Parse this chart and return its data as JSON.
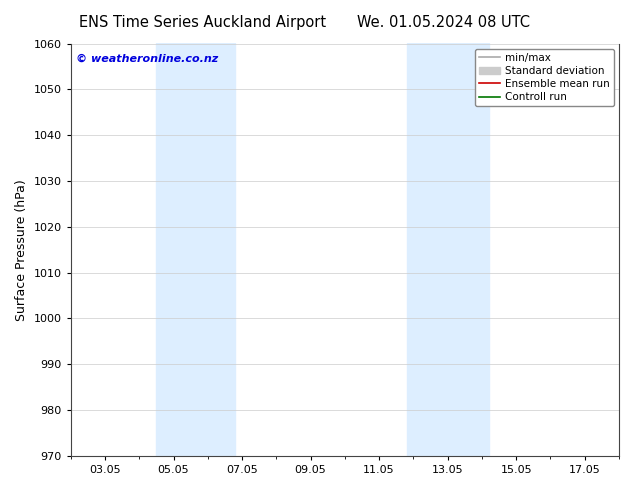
{
  "title_left": "ENS Time Series Auckland Airport",
  "title_right": "We. 01.05.2024 08 UTC",
  "ylabel": "Surface Pressure (hPa)",
  "ylim": [
    970,
    1060
  ],
  "yticks": [
    970,
    980,
    990,
    1000,
    1010,
    1020,
    1030,
    1040,
    1050,
    1060
  ],
  "xtick_labels": [
    "03.05",
    "05.05",
    "07.05",
    "09.05",
    "11.05",
    "13.05",
    "15.05",
    "17.05"
  ],
  "xtick_positions": [
    2,
    4,
    6,
    8,
    10,
    12,
    14,
    16
  ],
  "xlim": [
    1,
    17
  ],
  "shaded_bands": [
    {
      "x_start": 3.5,
      "x_end": 5.8
    },
    {
      "x_start": 10.8,
      "x_end": 13.2
    }
  ],
  "shade_color": "#ddeeff",
  "background_color": "#ffffff",
  "watermark_text": "© weatheronline.co.nz",
  "watermark_color": "#0000dd",
  "legend_items": [
    {
      "label": "min/max",
      "color": "#aaaaaa",
      "lw": 1.2,
      "type": "line"
    },
    {
      "label": "Standard deviation",
      "color": "#cccccc",
      "lw": 7,
      "type": "patch"
    },
    {
      "label": "Ensemble mean run",
      "color": "#cc0000",
      "lw": 1.2,
      "type": "line"
    },
    {
      "label": "Controll run",
      "color": "#007700",
      "lw": 1.2,
      "type": "line"
    }
  ],
  "grid_color": "#cccccc",
  "spine_color": "#444444",
  "title_fontsize": 10.5,
  "ylabel_fontsize": 9,
  "tick_fontsize": 8,
  "watermark_fontsize": 8,
  "legend_fontsize": 7.5
}
